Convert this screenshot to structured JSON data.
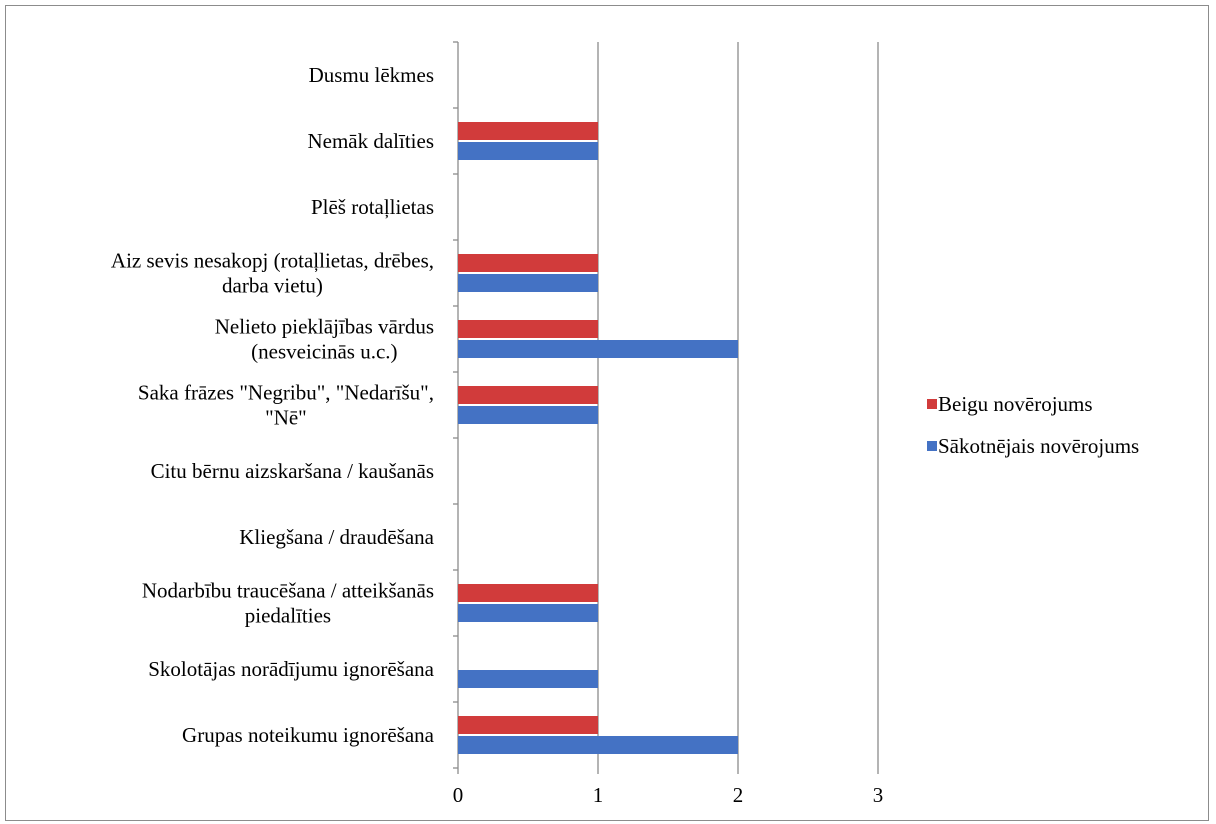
{
  "chart_data": {
    "type": "bar",
    "orientation": "horizontal",
    "categories": [
      [
        "Grupas noteikumu ignorēšana"
      ],
      [
        "Skolotājas norādījumu ignorēšana"
      ],
      [
        "Nodarbību traucēšana / atteikšanās",
        "piedalīties"
      ],
      [
        "Kliegšana / draudēšana"
      ],
      [
        "Citu bērnu aizskaršana / kaušanās"
      ],
      [
        "Saka frāzes \"Negribu\", \"Nedarīšu\",",
        "\"Nē\""
      ],
      [
        "Nelieto pieklājības vārdus",
        "(nesveicinās u.c.)"
      ],
      [
        "Aiz sevis nesakopj (rotaļlietas, drēbes,",
        "darba vietu)"
      ],
      [
        "Plēš rotaļlietas"
      ],
      [
        "Nemāk dalīties"
      ],
      [
        "Dusmu lēkmes"
      ]
    ],
    "series": [
      {
        "name": "Sākotnējais novērojums",
        "color": "#4472c4",
        "values": [
          2,
          1,
          1,
          0,
          0,
          1,
          2,
          1,
          0,
          1,
          0
        ]
      },
      {
        "name": "Beigu novērojums",
        "color": "#d13b3b",
        "values": [
          1,
          0,
          1,
          0,
          0,
          1,
          1,
          1,
          0,
          1,
          0
        ]
      }
    ],
    "xlim": [
      0,
      3
    ],
    "xticks": [
      "0",
      "1",
      "2",
      "3"
    ],
    "grid": "vertical",
    "legend": {
      "placement": "right",
      "order": [
        "Beigu novērojums",
        "Sākotnējais novērojums"
      ]
    },
    "title": "",
    "xlabel": "",
    "ylabel": ""
  }
}
